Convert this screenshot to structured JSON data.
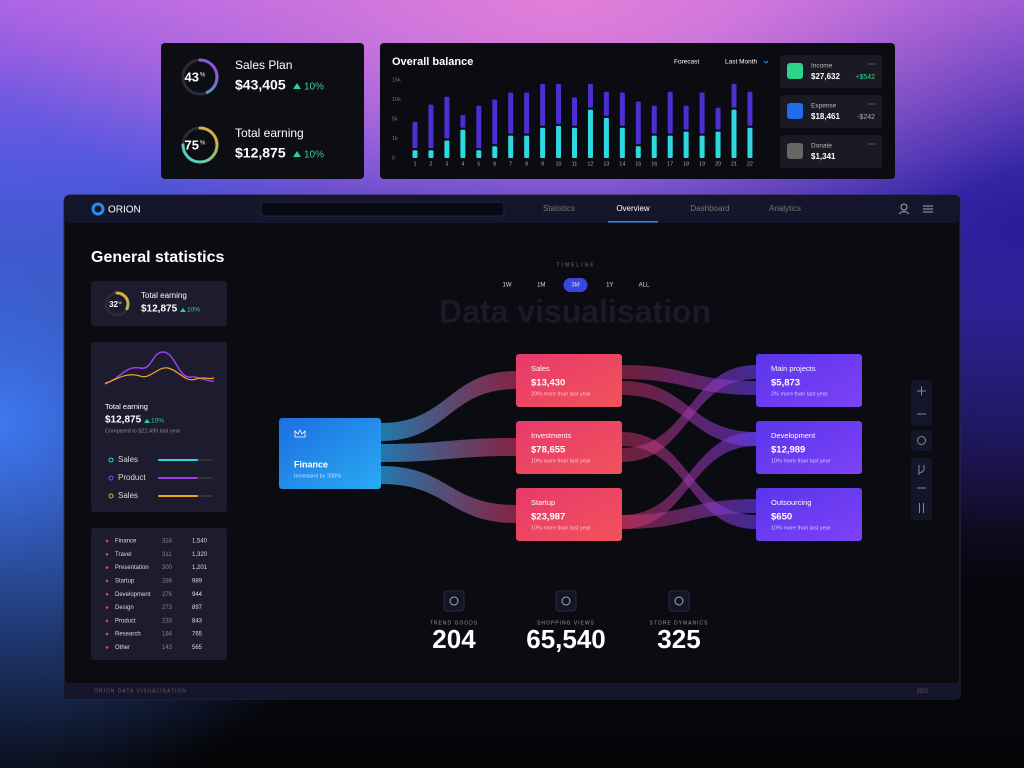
{
  "sales_card": {
    "items": [
      {
        "label": "Sales Plan",
        "percent": 43,
        "unit": "%",
        "amount": "$43,405",
        "change": "10%"
      },
      {
        "label": "Total earning",
        "percent": 75,
        "unit": "%",
        "amount": "$12,875",
        "change": "10%"
      }
    ]
  },
  "balance": {
    "title": "Overall balance",
    "forecast": "Forecast",
    "period": "Last Month",
    "chart_data": {
      "type": "bar",
      "stacked": true,
      "categories": [
        1,
        2,
        3,
        4,
        5,
        6,
        7,
        8,
        9,
        10,
        11,
        12,
        13,
        14,
        15,
        16,
        17,
        18,
        19,
        20,
        21,
        22
      ],
      "series": [
        {
          "color": "#2fd8e0",
          "values": [
            400,
            400,
            900,
            2800,
            400,
            600,
            1600,
            1600,
            3200,
            3600,
            3200,
            7400,
            5300,
            3200,
            600,
            1600,
            1600,
            2400,
            1600,
            2400,
            7400,
            3200
          ]
        },
        {
          "color": "#4b2fd0",
          "values": [
            4000,
            8300,
            9800,
            3200,
            8000,
            9400,
            10200,
            10200,
            10800,
            10400,
            7300,
            6600,
            6700,
            8600,
            8900,
            6800,
            10400,
            6000,
            10200,
            5500,
            6600,
            8800
          ]
        }
      ],
      "ylim": [
        0,
        15000
      ],
      "yticks": [
        0,
        {
          "value": 1000,
          "label": "1k"
        },
        {
          "value": 5000,
          "label": "5k"
        },
        {
          "value": 10000,
          "label": "10k"
        },
        {
          "value": 15000,
          "label": "15k"
        }
      ],
      "grid": false
    }
  },
  "accounts": [
    {
      "label": "Income",
      "amount": "$27,632",
      "change": "+$542"
    },
    {
      "label": "Expense",
      "amount": "$18,461",
      "change": "-$242"
    },
    {
      "label": "Donate",
      "amount": "$1,341"
    }
  ],
  "app": {
    "brand": "ORION",
    "nav": [
      "Statistics",
      "Overview",
      "Dashboard",
      "Analytics"
    ],
    "active_nav": 1
  },
  "general": {
    "title": "General statistics",
    "earning_card": {
      "label": "Total earning",
      "percent": 32,
      "unit": "%",
      "amount": "$12,875",
      "change": "10%"
    },
    "trend_card": {
      "label": "Total earning",
      "amount": "$12,875",
      "change": "10%",
      "note": "Compared to $21,490 last year",
      "legend": [
        {
          "name": "Sales",
          "color": "#2fd8e0"
        },
        {
          "name": "Product",
          "color": "#a03cf0"
        },
        {
          "name": "Sales",
          "color": "#f5a623"
        }
      ]
    },
    "table": {
      "rows": [
        [
          "Finance",
          "324",
          "1,540"
        ],
        [
          "Travel",
          "311",
          "1,320"
        ],
        [
          "Presentation",
          "300",
          "1,201"
        ],
        [
          "Startup",
          "288",
          "989"
        ],
        [
          "Development",
          "276",
          "944"
        ],
        [
          "Design",
          "273",
          "897"
        ],
        [
          "Product",
          "233",
          "843"
        ],
        [
          "Research",
          "184",
          "765"
        ],
        [
          "Other",
          "143",
          "565"
        ]
      ]
    }
  },
  "timeline": {
    "label": "TIMELINE",
    "options": [
      "1W",
      "1M",
      "3M",
      "1Y",
      "ALL"
    ],
    "active": 2
  },
  "watermark": "Data visualisation",
  "sankey": {
    "source": {
      "label": "Finance",
      "note": "Increased by 200%"
    },
    "middle": [
      {
        "label": "Sales",
        "amount": "$13,430",
        "note": "20% more than last year"
      },
      {
        "label": "Investments",
        "amount": "$78,655",
        "note": "10% more than last year"
      },
      {
        "label": "Startup",
        "amount": "$23,987",
        "note": "10% more than last year"
      }
    ],
    "targets": [
      {
        "label": "Main projects",
        "amount": "$5,873",
        "note": "2% more than last year"
      },
      {
        "label": "Development",
        "amount": "$12,989",
        "note": "10% more than last year"
      },
      {
        "label": "Outsourcing",
        "amount": "$650",
        "note": "10% more than last year"
      }
    ]
  },
  "stats": [
    {
      "label": "TREND GOODS",
      "value": "204"
    },
    {
      "label": "SHOPPING VIEWS",
      "value": "65,540"
    },
    {
      "label": "STORE DYMANICS",
      "value": "325"
    }
  ],
  "footer": {
    "left": "ORION DATA VISUALISATION",
    "right": "2022"
  }
}
